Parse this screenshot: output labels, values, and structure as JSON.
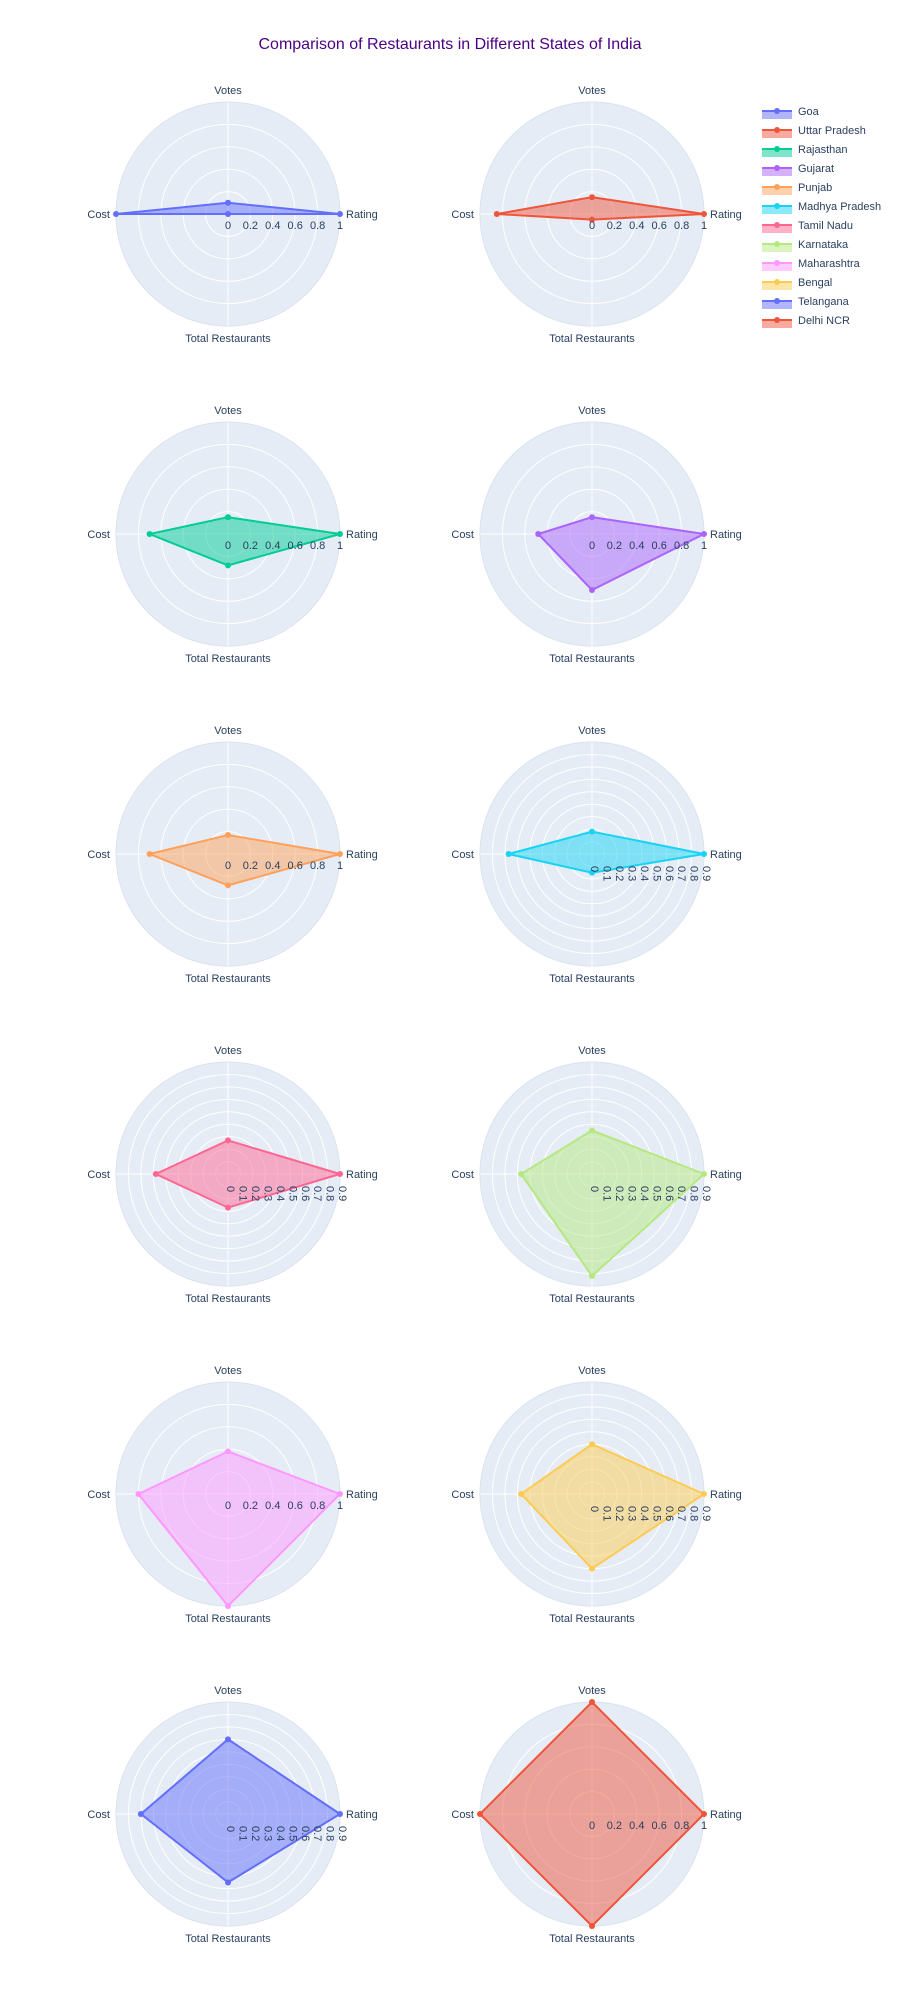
{
  "chart_data": {
    "type": "radar",
    "title": "Comparison of Restaurants in Different States of India",
    "axes": [
      "Rating",
      "Votes",
      "Cost",
      "Total Restaurants"
    ],
    "legend_placement": "top-right",
    "background": "#e5ecf6",
    "series": [
      {
        "name": "Goa",
        "color": "#636efa",
        "values": [
          1.0,
          0.1,
          1.0,
          0.0
        ],
        "ticks": [
          "0",
          "0.2",
          "0.4",
          "0.6",
          "0.8",
          "1"
        ],
        "tick_style": "horizontal"
      },
      {
        "name": "Uttar Pradesh",
        "color": "#ef553b",
        "values": [
          1.0,
          0.15,
          0.85,
          0.05
        ],
        "ticks": [
          "0",
          "0.2",
          "0.4",
          "0.6",
          "0.8",
          "1"
        ],
        "tick_style": "horizontal"
      },
      {
        "name": "Rajasthan",
        "color": "#00cc96",
        "values": [
          1.0,
          0.15,
          0.7,
          0.28
        ],
        "ticks": [
          "0",
          "0.2",
          "0.4",
          "0.6",
          "0.8",
          "1"
        ],
        "tick_style": "horizontal"
      },
      {
        "name": "Gujarat",
        "color": "#ab63fa",
        "values": [
          1.0,
          0.15,
          0.48,
          0.5
        ],
        "ticks": [
          "0",
          "0.2",
          "0.4",
          "0.6",
          "0.8",
          "1"
        ],
        "tick_style": "horizontal"
      },
      {
        "name": "Punjab",
        "color": "#ffa15a",
        "values": [
          1.0,
          0.17,
          0.7,
          0.28
        ],
        "ticks": [
          "0",
          "0.2",
          "0.4",
          "0.6",
          "0.8",
          "1"
        ],
        "tick_style": "horizontal"
      },
      {
        "name": "Madhya Pradesh",
        "color": "#19d3f3",
        "values": [
          0.9,
          0.18,
          0.67,
          0.15
        ],
        "ticks": [
          "0",
          "0.1",
          "0.2",
          "0.3",
          "0.4",
          "0.5",
          "0.6",
          "0.7",
          "0.8",
          "0.9"
        ],
        "tick_style": "vertical"
      },
      {
        "name": "Tamil Nadu",
        "color": "#ff6692",
        "values": [
          0.9,
          0.27,
          0.58,
          0.27
        ],
        "ticks": [
          "0",
          "0.1",
          "0.2",
          "0.3",
          "0.4",
          "0.5",
          "0.6",
          "0.7",
          "0.8",
          "0.9"
        ],
        "tick_style": "vertical"
      },
      {
        "name": "Karnataka",
        "color": "#b6e880",
        "values": [
          0.9,
          0.35,
          0.57,
          0.82
        ],
        "ticks": [
          "0",
          "0.1",
          "0.2",
          "0.3",
          "0.4",
          "0.5",
          "0.6",
          "0.7",
          "0.8",
          "0.9"
        ],
        "tick_style": "vertical"
      },
      {
        "name": "Maharashtra",
        "color": "#ff97ff",
        "values": [
          1.0,
          0.38,
          0.8,
          1.0
        ],
        "ticks": [
          "0",
          "0.2",
          "0.4",
          "0.6",
          "0.8",
          "1"
        ],
        "tick_style": "horizontal"
      },
      {
        "name": "Bengal",
        "color": "#fecb52",
        "values": [
          0.9,
          0.4,
          0.57,
          0.6
        ],
        "ticks": [
          "0",
          "0.1",
          "0.2",
          "0.3",
          "0.4",
          "0.5",
          "0.6",
          "0.7",
          "0.8",
          "0.9"
        ],
        "tick_style": "vertical"
      },
      {
        "name": "Telangana",
        "color": "#636efa",
        "values": [
          0.9,
          0.6,
          0.7,
          0.55
        ],
        "ticks": [
          "0",
          "0.1",
          "0.2",
          "0.3",
          "0.4",
          "0.5",
          "0.6",
          "0.7",
          "0.8",
          "0.9"
        ],
        "tick_style": "vertical"
      },
      {
        "name": "Delhi NCR",
        "color": "#ef553b",
        "values": [
          1.0,
          1.0,
          1.0,
          1.0
        ],
        "ticks": [
          "0",
          "0.2",
          "0.4",
          "0.6",
          "0.8",
          "1"
        ],
        "tick_style": "horizontal"
      }
    ]
  }
}
